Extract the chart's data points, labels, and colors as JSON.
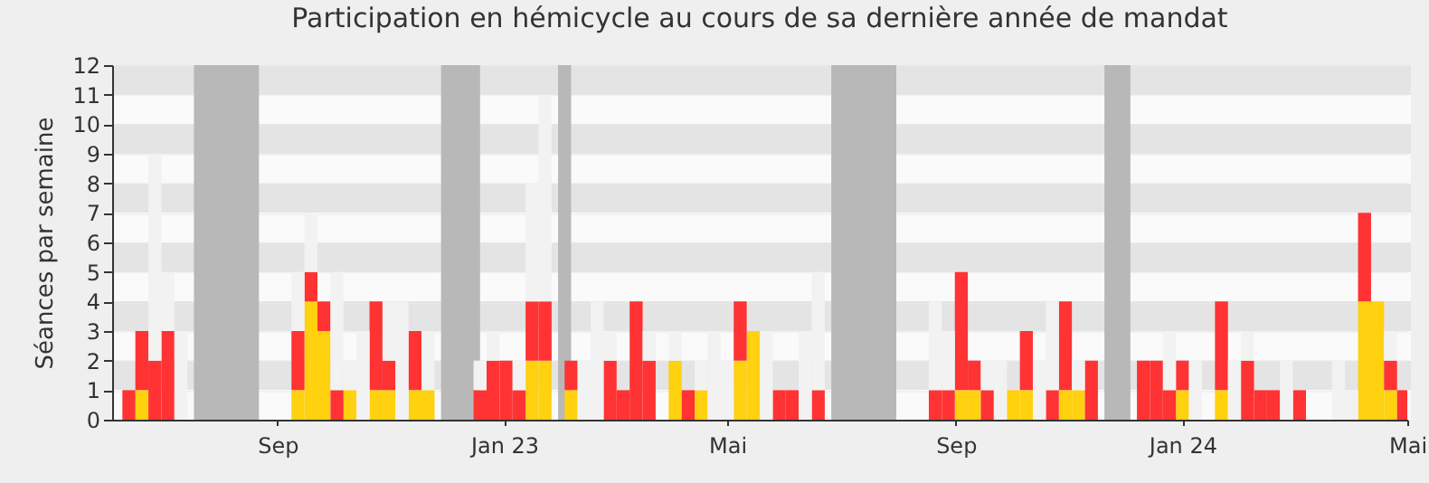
{
  "chart_data": {
    "type": "bar",
    "title": "Participation en hémicycle au cours de sa dernière année de mandat",
    "ylabel": "Séances par semaine",
    "x": [
      "2022-06-13",
      "2022-06-20",
      "2022-06-27",
      "2022-07-04",
      "2022-07-11",
      "2022-09-12",
      "2022-09-19",
      "2022-09-26",
      "2022-10-03",
      "2022-10-10",
      "2022-10-17",
      "2022-10-24",
      "2022-10-31",
      "2022-11-07",
      "2022-11-14",
      "2022-11-21",
      "2022-12-19",
      "2022-12-26",
      "2023-01-02",
      "2023-01-09",
      "2023-01-16",
      "2023-01-23",
      "2023-02-06",
      "2023-02-13",
      "2023-02-20",
      "2023-02-27",
      "2023-03-06",
      "2023-03-13",
      "2023-03-20",
      "2023-04-03",
      "2023-04-10",
      "2023-04-17",
      "2023-04-24",
      "2023-05-01",
      "2023-05-08",
      "2023-05-15",
      "2023-05-22",
      "2023-05-29",
      "2023-06-05",
      "2023-06-12",
      "2023-06-19",
      "2023-08-21",
      "2023-08-28",
      "2023-09-04",
      "2023-09-11",
      "2023-09-18",
      "2023-09-25",
      "2023-10-02",
      "2023-10-09",
      "2023-10-16",
      "2023-10-23",
      "2023-10-30",
      "2023-11-06",
      "2023-11-13",
      "2023-12-11",
      "2023-12-18",
      "2023-12-25",
      "2024-01-01",
      "2024-01-08",
      "2024-01-22",
      "2024-01-29",
      "2024-02-05",
      "2024-02-12",
      "2024-02-19",
      "2024-02-26",
      "2024-03-04",
      "2024-03-25",
      "2024-04-01",
      "2024-04-08",
      "2024-04-15",
      "2024-04-22",
      "2024-04-29"
    ],
    "series": [
      {
        "color": "#ffd10f",
        "values": [
          null,
          1,
          null,
          null,
          null,
          1,
          4,
          3,
          null,
          1,
          null,
          1,
          1,
          null,
          1,
          1,
          null,
          null,
          null,
          null,
          2,
          2,
          1,
          null,
          null,
          null,
          null,
          null,
          null,
          2,
          null,
          1,
          null,
          null,
          2,
          3,
          null,
          null,
          null,
          null,
          null,
          null,
          null,
          1,
          1,
          null,
          null,
          1,
          1,
          null,
          null,
          1,
          1,
          null,
          null,
          null,
          null,
          1,
          null,
          1,
          null,
          null,
          null,
          null,
          null,
          null,
          null,
          null,
          4,
          4,
          1,
          null
        ]
      },
      {
        "color": "#ff3333",
        "values": [
          1,
          2,
          2,
          3,
          null,
          2,
          1,
          1,
          1,
          null,
          null,
          3,
          1,
          null,
          2,
          null,
          1,
          2,
          2,
          1,
          2,
          2,
          1,
          null,
          null,
          2,
          1,
          4,
          2,
          null,
          1,
          null,
          null,
          null,
          2,
          null,
          null,
          1,
          1,
          null,
          1,
          1,
          1,
          4,
          1,
          1,
          null,
          null,
          2,
          null,
          1,
          3,
          null,
          2,
          2,
          2,
          1,
          1,
          null,
          3,
          null,
          2,
          1,
          1,
          null,
          1,
          null,
          null,
          3,
          null,
          1,
          1
        ]
      },
      {
        "color": "#f2f2f2",
        "values": [
          null,
          null,
          7,
          2,
          3,
          2,
          2,
          null,
          4,
          1,
          3,
          null,
          2,
          4,
          null,
          2,
          1,
          1,
          null,
          1,
          4,
          7,
          null,
          2,
          4,
          1,
          null,
          null,
          1,
          1,
          null,
          1,
          3,
          2,
          null,
          null,
          3,
          null,
          null,
          3,
          4,
          3,
          2,
          null,
          null,
          1,
          2,
          null,
          null,
          2,
          3,
          null,
          1,
          null,
          null,
          null,
          2,
          null,
          2,
          null,
          2,
          1,
          null,
          null,
          2,
          null,
          2,
          1,
          null,
          null,
          1,
          null
        ]
      }
    ],
    "stacked": true,
    "xlim": [
      "2022-06-04",
      "2024-05-01"
    ],
    "xticks": [
      {
        "value": "2022-09-01",
        "label": "Sep"
      },
      {
        "value": "2023-01-01",
        "label": "Jan 23"
      },
      {
        "value": "2023-05-01",
        "label": "Mai"
      },
      {
        "value": "2023-09-01",
        "label": "Sep"
      },
      {
        "value": "2024-01-01",
        "label": "Jan 24"
      },
      {
        "value": "2024-05-01",
        "label": "Mai"
      }
    ],
    "ylim": [
      0,
      12
    ],
    "yticks": [
      0,
      1,
      2,
      3,
      4,
      5,
      6,
      7,
      8,
      9,
      10,
      11,
      12
    ],
    "bands": [
      {
        "axis": "x",
        "from": "2022-07-18",
        "to": "2022-08-22",
        "color": "#b8b8b8"
      },
      {
        "axis": "x",
        "from": "2022-11-28",
        "to": "2022-12-19",
        "color": "#b8b8b8"
      },
      {
        "axis": "x",
        "from": "2023-01-30",
        "to": "2023-02-06",
        "color": "#b8b8b8"
      },
      {
        "axis": "x",
        "from": "2023-06-26",
        "to": "2023-07-31",
        "color": "#b8b8b8"
      },
      {
        "axis": "x",
        "from": "2023-11-20",
        "to": "2023-12-04",
        "color": "#b8b8b8"
      }
    ],
    "grid": "y"
  }
}
